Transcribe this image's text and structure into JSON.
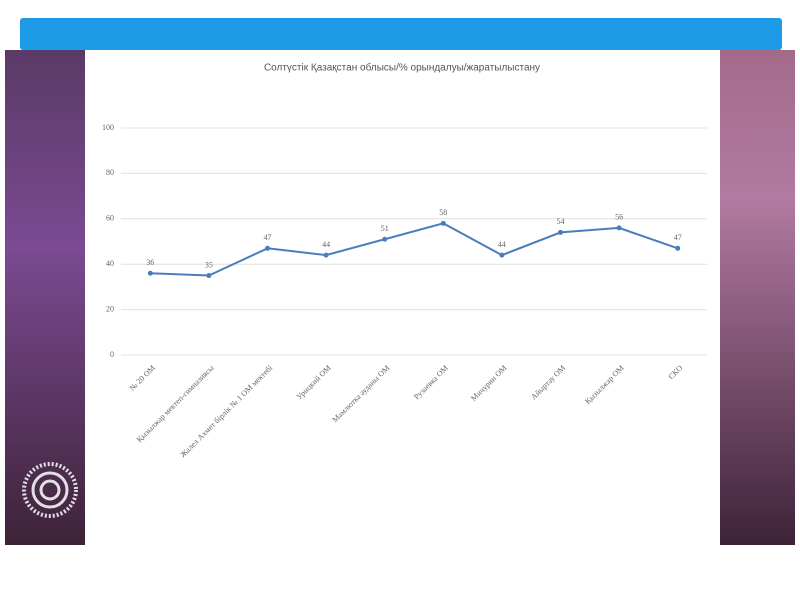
{
  "chart_data": {
    "type": "line",
    "title": "Солтүстік Қазақстан облысы/% орындалуы/жаратылыстану",
    "categories": [
      "№ 20 ОМ",
      "Қызылжар мектеп-гимназиясы",
      "Жалел Ахмет бірлік № 1 ОМ мектебі",
      "Урицкий ОМ",
      "Мамлютка ауданы ОМ",
      "Рузаевка ОМ",
      "Мичурин ОМ",
      "Айыртау ОМ",
      "Қызылжар ОМ",
      "СКО"
    ],
    "series": [
      {
        "name": "Орындалуы",
        "color": "#4a7ebb",
        "values": [
          36,
          35,
          47,
          44,
          51,
          58,
          44,
          54,
          56,
          47
        ]
      }
    ],
    "ylim": [
      0,
      100
    ],
    "yticks": [
      0,
      20,
      40,
      60,
      80,
      100
    ],
    "grid": true
  },
  "logo": "Prezi"
}
